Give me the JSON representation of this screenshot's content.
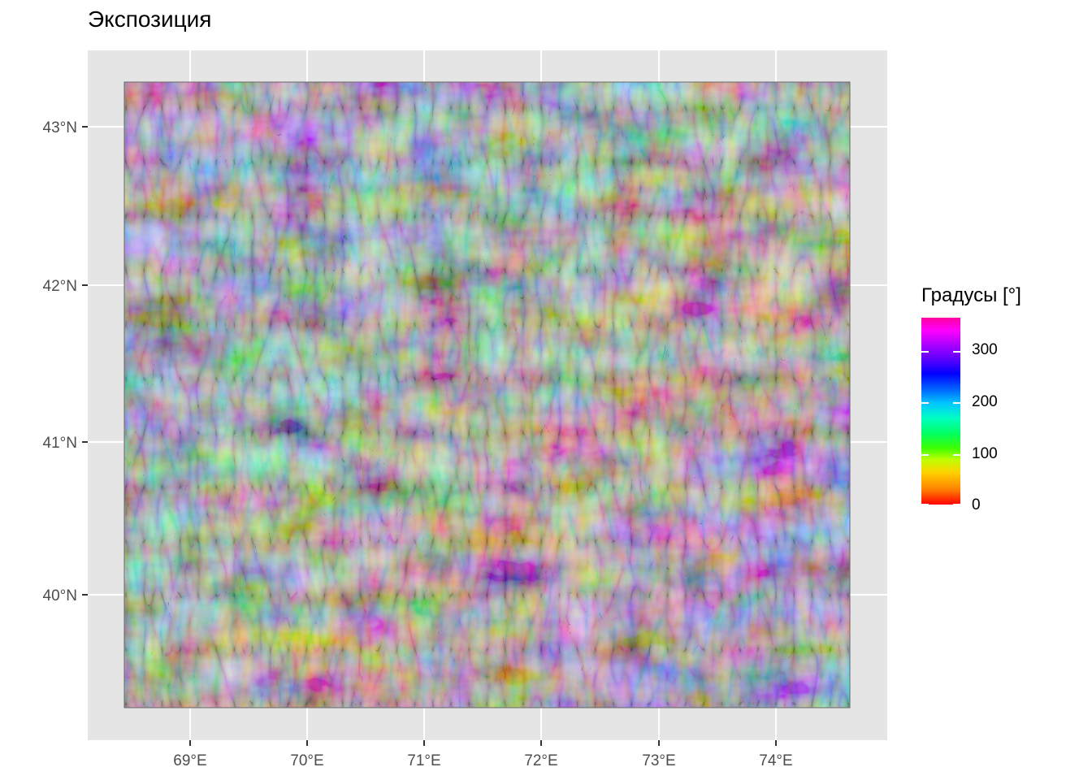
{
  "map": {
    "title": "Экспозиция",
    "x_ticks": [
      "69°E",
      "70°E",
      "71°E",
      "72°E",
      "73°E",
      "74°E"
    ],
    "y_ticks": [
      "43°N",
      "42°N",
      "41°N",
      "40°N"
    ],
    "background_color": "#e5e5e5",
    "grid_color": "#ffffff"
  },
  "legend": {
    "title": "Градусы [°]",
    "labels": [
      "300",
      "200",
      "100",
      "0"
    ],
    "palette": [
      "#ff0000",
      "#ffd000",
      "#40ff00",
      "#00ffc0",
      "#00c8ff",
      "#0000ff",
      "#b000ff",
      "#ff00ff",
      "#ff00a0"
    ]
  }
}
